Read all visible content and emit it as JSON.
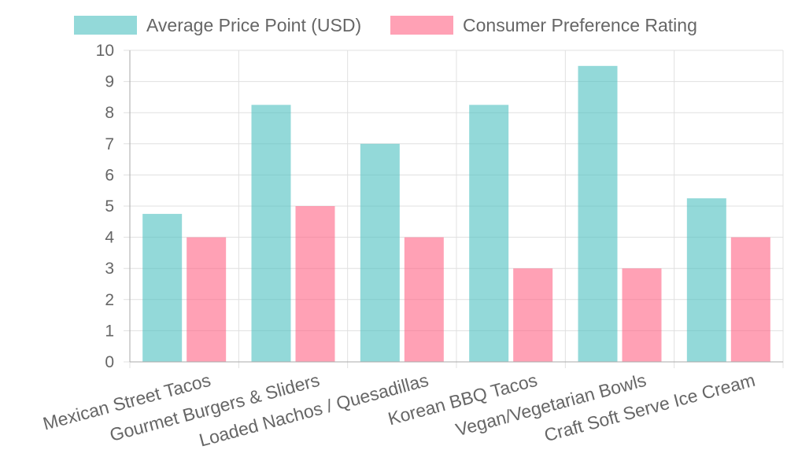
{
  "chart_data": {
    "type": "bar",
    "categories": [
      "Mexican Street Tacos",
      "Gourmet Burgers & Sliders",
      "Loaded Nachos / Quesadillas",
      "Korean BBQ Tacos",
      "Vegan/Vegetarian Bowls",
      "Craft Soft Serve Ice Cream"
    ],
    "series": [
      {
        "name": "Average Price Point (USD)",
        "values": [
          4.75,
          8.25,
          7,
          8.25,
          9.5,
          5.25
        ]
      },
      {
        "name": "Consumer Preference Rating",
        "values": [
          4,
          5,
          4,
          3,
          3,
          4
        ]
      }
    ],
    "title": "",
    "xlabel": "",
    "ylabel": "",
    "ylim": [
      0,
      10
    ],
    "yticks": [
      "0",
      "1",
      "2",
      "3",
      "4",
      "5",
      "6",
      "7",
      "8",
      "9",
      "10"
    ],
    "grid": true,
    "legend_position": "top-center"
  },
  "colors": {
    "series_fill": [
      "#4bc0c0",
      "#ff6384"
    ],
    "series_opacity": 0.6,
    "grid": "#e0e0e0",
    "axis": "#aaaaaa",
    "text": "#666666"
  }
}
